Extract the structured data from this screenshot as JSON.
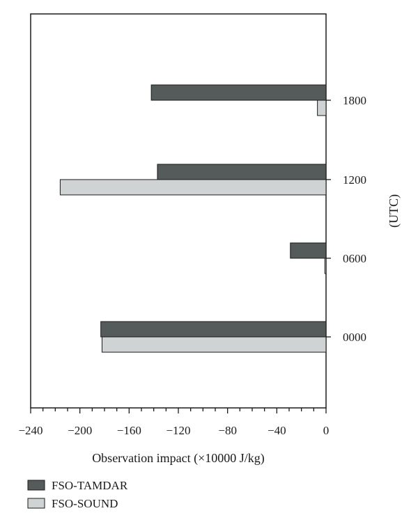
{
  "chart_data": {
    "type": "bar",
    "orientation": "horizontal",
    "categories": [
      "0000",
      "0600",
      "1200",
      "1800"
    ],
    "series": [
      {
        "name": "FSO-TAMDAR",
        "values": [
          -183,
          -29,
          -137,
          -142
        ],
        "color": "#555a5a"
      },
      {
        "name": "FSO-SOUND",
        "values": [
          -182,
          -1,
          -216,
          -7
        ],
        "color": "#cfd3d3"
      }
    ],
    "xlabel": "Observation impact (×10000 J/kg)",
    "ylabel": "(UTC)",
    "xlim": [
      -240,
      0
    ],
    "xticks": [
      -240,
      -200,
      -160,
      -120,
      -80,
      -40,
      0
    ],
    "xtick_labels": [
      "−240",
      "−200",
      "−160",
      "−120",
      "−80",
      "−40",
      "0"
    ],
    "minor_tick_step": 10,
    "category_axis_side": "right",
    "grid": false,
    "legend_position": "bottom-left"
  }
}
